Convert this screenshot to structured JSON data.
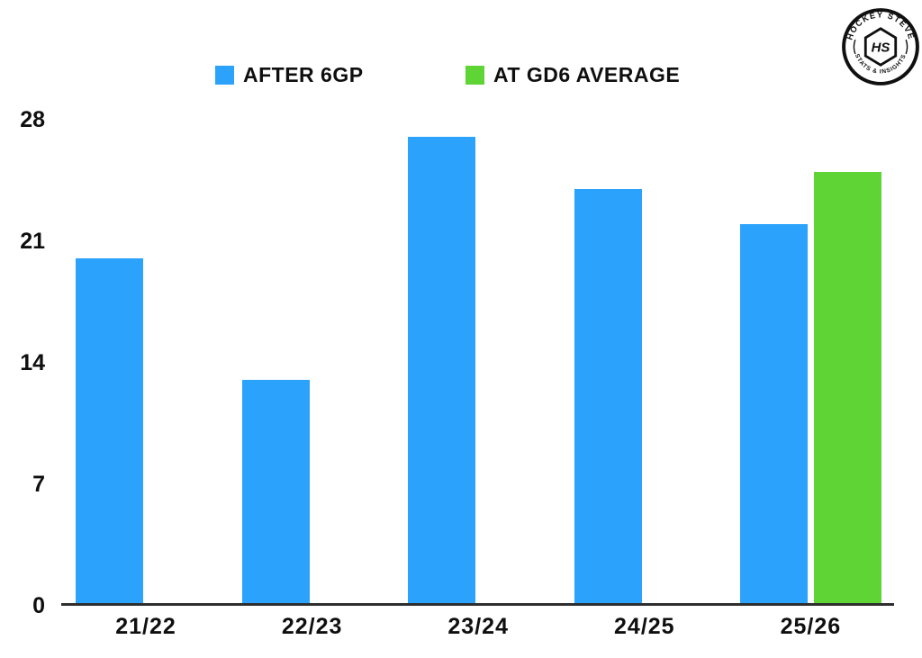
{
  "legend": {
    "items": [
      {
        "label": "AFTER 6GP",
        "color": "#2BA2FC"
      },
      {
        "label": "AT GD6 AVERAGE",
        "color": "#5FD435"
      }
    ]
  },
  "logo": {
    "arc_top": "HOCKEY STEVE",
    "arc_bottom": "STATS & INSIGHTS",
    "monogram": "HS"
  },
  "chart_data": {
    "type": "bar",
    "categories": [
      "21/22",
      "22/23",
      "23/24",
      "24/25",
      "25/26"
    ],
    "series": [
      {
        "name": "AFTER 6GP",
        "color": "#2BA2FC",
        "values": [
          20,
          13,
          27,
          24,
          22
        ]
      },
      {
        "name": "AT GD6 AVERAGE",
        "color": "#5FD435",
        "values": [
          null,
          null,
          null,
          null,
          25
        ]
      }
    ],
    "title": "",
    "xlabel": "",
    "ylabel": "",
    "yticks": [
      0,
      7,
      14,
      21,
      28
    ],
    "ylim": [
      0,
      28
    ],
    "grid": false,
    "legend_position": "top-center",
    "axis_color": "#2e2e2e",
    "text_color": "#0f0f0f"
  }
}
